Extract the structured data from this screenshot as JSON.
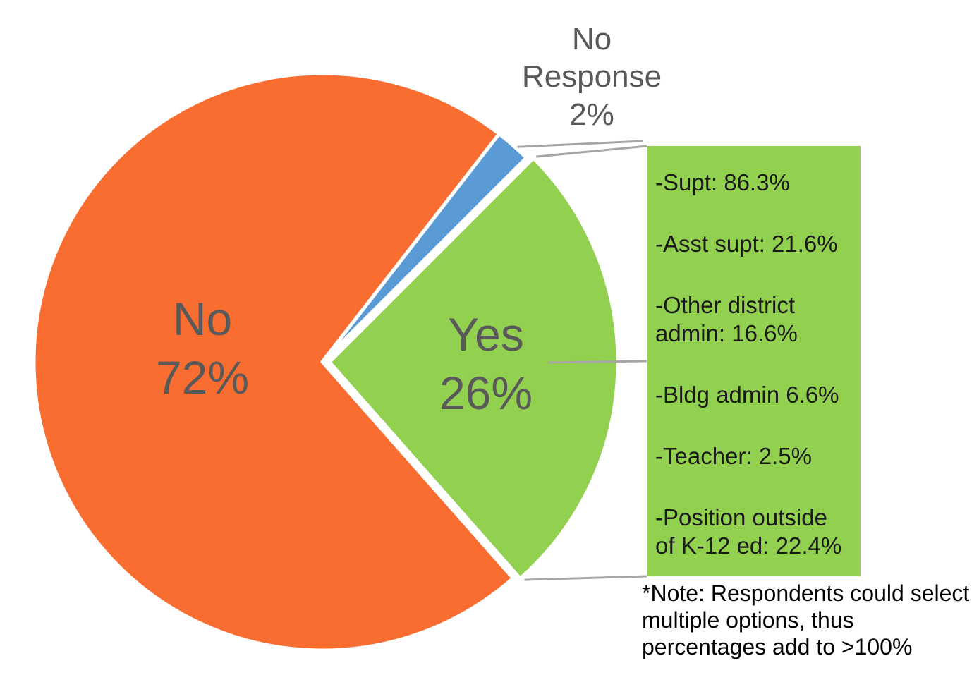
{
  "chart_data": {
    "type": "pie",
    "title": "",
    "slices": [
      {
        "label": "Yes",
        "value": 26,
        "value_label": "26%",
        "color": "#92D050"
      },
      {
        "label": "No",
        "value": 72,
        "value_label": "72%",
        "color": "#F96D31"
      },
      {
        "label": "No Response",
        "value": 2,
        "value_label": "2%",
        "color": "#5B9BD5"
      }
    ],
    "start_angle_deg": 45,
    "exploded_slice": "Yes",
    "label_color": "#595959",
    "leader_line_color": "#A6A6A6"
  },
  "callout": {
    "background": "#92D050",
    "items": [
      {
        "text": "-Supt: 86.3%"
      },
      {
        "text": "-Asst supt: 21.6%"
      },
      {
        "text": "-Other district\nadmin: 16.6%"
      },
      {
        "text": "-Bldg admin 6.6%"
      },
      {
        "text": "-Teacher: 2.5%"
      },
      {
        "text": "-Position outside\nof K-12 ed: 22.4%"
      }
    ]
  },
  "note": {
    "text": "*Note: Respondents could select multiple options, thus percentages add to >100%"
  }
}
